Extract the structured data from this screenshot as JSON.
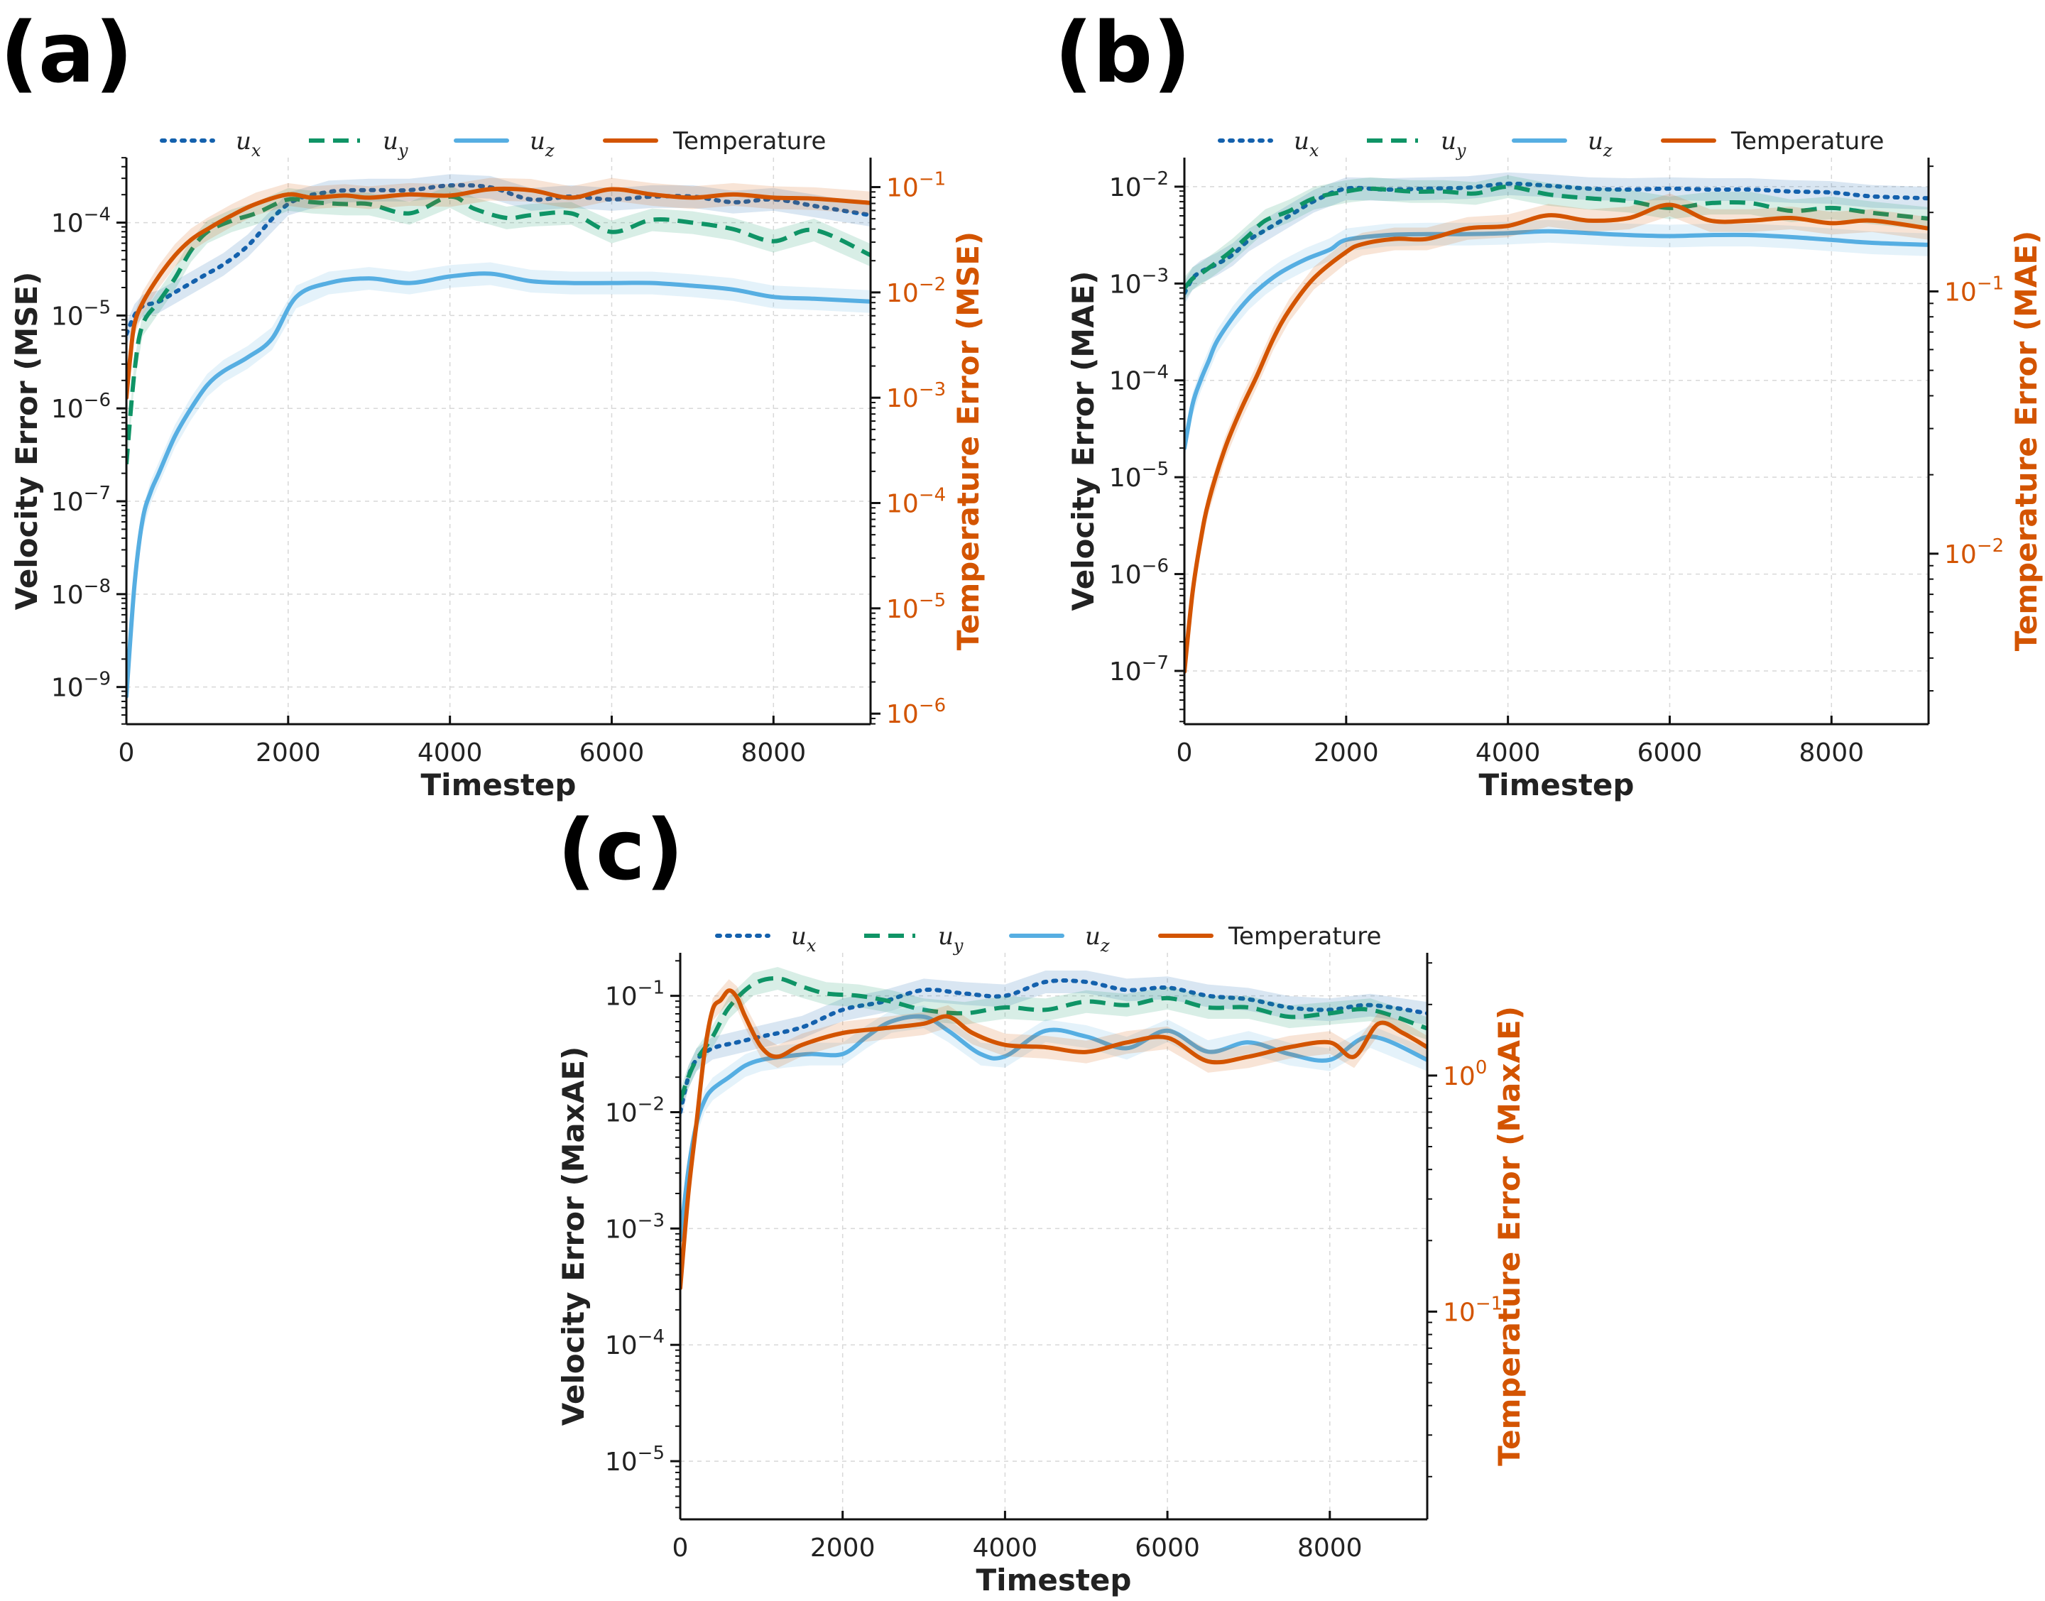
{
  "colors": {
    "ux": "#1461ad",
    "uy": "#0f9466",
    "uz": "#56aee2",
    "temperature": "#d35400",
    "axis": "#111111",
    "grid": "#d8d8d8"
  },
  "legend": [
    {
      "key": "ux",
      "base": "u",
      "sub": "x",
      "style": "dotted",
      "color": "#1461ad"
    },
    {
      "key": "uy",
      "base": "u",
      "sub": "y",
      "style": "dashed",
      "color": "#0f9466"
    },
    {
      "key": "uz",
      "base": "u",
      "sub": "z",
      "style": "solid",
      "color": "#56aee2"
    },
    {
      "key": "temperature",
      "label": "Temperature",
      "style": "solid",
      "color": "#d35400"
    }
  ],
  "chart_data": [
    {
      "type": "line",
      "panel_label": "(a)",
      "xlabel": "Timestep",
      "ylabel": "Velocity Error (MSE)",
      "y2label": "Temperature Error (MSE)",
      "xlim": [
        0,
        9200
      ],
      "xticks": [
        0,
        2000,
        4000,
        6000,
        8000
      ],
      "yscale": "log",
      "ylim_exp": [
        -9.4,
        -3.3
      ],
      "yticks_exp": [
        -9,
        -8,
        -7,
        -6,
        -5,
        -4
      ],
      "y2scale": "log",
      "y2lim_exp": [
        -6.1,
        -0.72
      ],
      "y2ticks_exp": [
        -6,
        -5,
        -4,
        -3,
        -2,
        -1
      ],
      "grid": true,
      "legend_position": "top",
      "series": [
        {
          "key": "ux",
          "axis": "left",
          "x": [
            0,
            100,
            200,
            400,
            600,
            800,
            1000,
            1200,
            1500,
            2000,
            2500,
            3000,
            3500,
            4000,
            4500,
            5000,
            5500,
            6000,
            6500,
            7000,
            7500,
            8000,
            8500,
            9200
          ],
          "y_exp": [
            -5.2,
            -5.0,
            -4.9,
            -4.85,
            -4.75,
            -4.65,
            -4.55,
            -4.45,
            -4.25,
            -3.8,
            -3.67,
            -3.65,
            -3.65,
            -3.6,
            -3.62,
            -3.75,
            -3.72,
            -3.75,
            -3.72,
            -3.72,
            -3.78,
            -3.75,
            -3.82,
            -3.92
          ]
        },
        {
          "key": "uy",
          "axis": "left",
          "x": [
            0,
            100,
            200,
            400,
            600,
            800,
            1000,
            1300,
            1600,
            2000,
            2300,
            2700,
            3000,
            3500,
            4000,
            4300,
            4700,
            5000,
            5500,
            6000,
            6500,
            7000,
            7500,
            8000,
            8500,
            9200
          ],
          "y_exp": [
            -6.6,
            -5.6,
            -5.1,
            -4.85,
            -4.6,
            -4.3,
            -4.1,
            -3.98,
            -3.9,
            -3.75,
            -3.78,
            -3.8,
            -3.8,
            -3.9,
            -3.72,
            -3.85,
            -3.95,
            -3.92,
            -3.9,
            -4.1,
            -3.97,
            -4.0,
            -4.07,
            -4.2,
            -4.08,
            -4.35
          ]
        },
        {
          "key": "uz",
          "axis": "left",
          "x": [
            0,
            100,
            200,
            300,
            400,
            600,
            800,
            1000,
            1200,
            1500,
            1800,
            2100,
            2500,
            3000,
            3500,
            4000,
            4500,
            5000,
            5500,
            6000,
            6500,
            7000,
            7500,
            8000,
            8500,
            9200
          ],
          "y_exp": [
            -9.1,
            -7.9,
            -7.2,
            -6.9,
            -6.7,
            -6.3,
            -6.0,
            -5.75,
            -5.6,
            -5.45,
            -5.25,
            -4.8,
            -4.65,
            -4.6,
            -4.65,
            -4.58,
            -4.55,
            -4.63,
            -4.65,
            -4.65,
            -4.65,
            -4.68,
            -4.72,
            -4.8,
            -4.82,
            -4.85
          ]
        },
        {
          "key": "temperature",
          "axis": "right",
          "x": [
            0,
            50,
            100,
            200,
            400,
            600,
            800,
            1000,
            1300,
            1600,
            2000,
            2300,
            2700,
            3000,
            3500,
            4000,
            4500,
            5000,
            5500,
            6000,
            6500,
            7000,
            7500,
            8000,
            8500,
            9200
          ],
          "y_exp": [
            -3.0,
            -2.6,
            -2.3,
            -2.1,
            -1.85,
            -1.65,
            -1.5,
            -1.4,
            -1.27,
            -1.16,
            -1.07,
            -1.1,
            -1.08,
            -1.1,
            -1.07,
            -1.08,
            -1.02,
            -1.03,
            -1.1,
            -1.02,
            -1.07,
            -1.1,
            -1.07,
            -1.1,
            -1.11,
            -1.15
          ]
        }
      ]
    },
    {
      "type": "line",
      "panel_label": "(b)",
      "xlabel": "Timestep",
      "ylabel": "Velocity Error (MAE)",
      "y2label": "Temperature Error (MAE)",
      "xlim": [
        0,
        9200
      ],
      "xticks": [
        0,
        2000,
        4000,
        6000,
        8000
      ],
      "yscale": "log",
      "ylim_exp": [
        -7.55,
        -1.7
      ],
      "yticks_exp": [
        -7,
        -6,
        -5,
        -4,
        -3,
        -2
      ],
      "y2scale": "log",
      "y2lim_exp": [
        -2.65,
        -0.49
      ],
      "y2ticks_exp": [
        -2,
        -1
      ],
      "grid": true,
      "legend_position": "top",
      "series": [
        {
          "key": "ux",
          "axis": "left",
          "x": [
            0,
            100,
            200,
            400,
            600,
            800,
            1000,
            1300,
            1600,
            2000,
            2500,
            3000,
            3500,
            4000,
            4500,
            5000,
            5500,
            6000,
            6500,
            7000,
            7500,
            8000,
            8500,
            9200
          ],
          "y_exp": [
            -3.1,
            -2.95,
            -2.88,
            -2.8,
            -2.7,
            -2.55,
            -2.45,
            -2.3,
            -2.15,
            -2.02,
            -2.03,
            -2.02,
            -2.01,
            -1.97,
            -1.99,
            -2.02,
            -2.03,
            -2.02,
            -2.03,
            -2.03,
            -2.05,
            -2.06,
            -2.1,
            -2.12
          ]
        },
        {
          "key": "uy",
          "axis": "left",
          "x": [
            0,
            100,
            200,
            400,
            600,
            800,
            1000,
            1300,
            1600,
            2000,
            2300,
            2800,
            3200,
            3600,
            4000,
            4500,
            5000,
            5500,
            6000,
            6500,
            7000,
            7500,
            8000,
            8500,
            9200
          ],
          "y_exp": [
            -3.05,
            -2.95,
            -2.9,
            -2.78,
            -2.65,
            -2.5,
            -2.35,
            -2.25,
            -2.12,
            -2.05,
            -2.02,
            -2.05,
            -2.05,
            -2.07,
            -2.0,
            -2.08,
            -2.12,
            -2.15,
            -2.22,
            -2.17,
            -2.17,
            -2.25,
            -2.22,
            -2.27,
            -2.33
          ]
        },
        {
          "key": "uz",
          "axis": "left",
          "x": [
            0,
            100,
            200,
            300,
            400,
            600,
            800,
            1000,
            1200,
            1500,
            1800,
            2000,
            2500,
            3000,
            3500,
            4000,
            4500,
            5000,
            5500,
            6000,
            6500,
            7000,
            7500,
            8000,
            8500,
            9200
          ],
          "y_exp": [
            -4.7,
            -4.25,
            -4.0,
            -3.8,
            -3.6,
            -3.35,
            -3.15,
            -3.0,
            -2.88,
            -2.75,
            -2.65,
            -2.55,
            -2.5,
            -2.49,
            -2.49,
            -2.48,
            -2.46,
            -2.48,
            -2.5,
            -2.51,
            -2.5,
            -2.5,
            -2.52,
            -2.55,
            -2.58,
            -2.6
          ]
        },
        {
          "key": "temperature",
          "axis": "right",
          "x": [
            0,
            100,
            200,
            300,
            500,
            700,
            900,
            1100,
            1300,
            1600,
            2000,
            2200,
            2600,
            3000,
            3500,
            4000,
            4500,
            5000,
            5500,
            6000,
            6500,
            7000,
            7500,
            8000,
            8500,
            9200
          ],
          "y_exp": [
            -2.45,
            -2.15,
            -1.95,
            -1.8,
            -1.6,
            -1.45,
            -1.32,
            -1.18,
            -1.07,
            -0.95,
            -0.85,
            -0.82,
            -0.8,
            -0.8,
            -0.76,
            -0.75,
            -0.71,
            -0.73,
            -0.72,
            -0.67,
            -0.73,
            -0.73,
            -0.72,
            -0.74,
            -0.73,
            -0.76
          ]
        }
      ]
    },
    {
      "type": "line",
      "panel_label": "(c)",
      "xlabel": "Timestep",
      "ylabel": "Velocity Error (MaxAE)",
      "y2label": "Temperature Error (MaxAE)",
      "xlim": [
        0,
        9200
      ],
      "xticks": [
        0,
        2000,
        4000,
        6000,
        8000
      ],
      "yscale": "log",
      "ylim_exp": [
        -5.5,
        -0.63
      ],
      "yticks_exp": [
        -5,
        -4,
        -3,
        -2,
        -1
      ],
      "y2scale": "log",
      "y2lim_exp": [
        -1.88,
        0.52
      ],
      "y2ticks_exp": [
        -1,
        0
      ],
      "grid": true,
      "legend_position": "top",
      "series": [
        {
          "key": "ux",
          "axis": "left",
          "x": [
            0,
            100,
            200,
            400,
            700,
            1000,
            1500,
            2000,
            2500,
            3000,
            3500,
            4000,
            4500,
            5000,
            5500,
            6000,
            6500,
            7000,
            7500,
            8000,
            8500,
            9200
          ],
          "y_exp": [
            -2.0,
            -1.7,
            -1.55,
            -1.45,
            -1.4,
            -1.35,
            -1.27,
            -1.12,
            -1.05,
            -0.95,
            -0.98,
            -1.0,
            -0.88,
            -0.88,
            -0.95,
            -0.93,
            -1.0,
            -1.03,
            -1.1,
            -1.12,
            -1.08,
            -1.15
          ]
        },
        {
          "key": "uy",
          "axis": "left",
          "x": [
            0,
            100,
            200,
            400,
            600,
            900,
            1200,
            1500,
            1800,
            2200,
            2600,
            3000,
            3500,
            4000,
            4500,
            5000,
            5500,
            6000,
            6500,
            7000,
            7500,
            8000,
            8500,
            9200
          ],
          "y_exp": [
            -1.9,
            -1.7,
            -1.55,
            -1.35,
            -1.1,
            -0.9,
            -0.85,
            -0.92,
            -0.98,
            -1.0,
            -1.05,
            -1.12,
            -1.15,
            -1.1,
            -1.12,
            -1.05,
            -1.08,
            -1.02,
            -1.1,
            -1.1,
            -1.18,
            -1.15,
            -1.12,
            -1.28
          ]
        },
        {
          "key": "uz",
          "axis": "left",
          "x": [
            0,
            100,
            200,
            300,
            400,
            600,
            800,
            1000,
            1300,
            1600,
            2000,
            2300,
            2600,
            3000,
            3300,
            3700,
            4000,
            4500,
            5000,
            5500,
            6000,
            6500,
            7000,
            7500,
            8000,
            8500,
            9200
          ],
          "y_exp": [
            -3.1,
            -2.5,
            -2.1,
            -1.9,
            -1.8,
            -1.7,
            -1.6,
            -1.55,
            -1.52,
            -1.5,
            -1.5,
            -1.35,
            -1.22,
            -1.18,
            -1.3,
            -1.5,
            -1.52,
            -1.3,
            -1.35,
            -1.45,
            -1.3,
            -1.48,
            -1.4,
            -1.5,
            -1.55,
            -1.35,
            -1.55
          ]
        },
        {
          "key": "temperature",
          "axis": "right",
          "x": [
            0,
            100,
            200,
            300,
            400,
            500,
            600,
            700,
            800,
            1000,
            1200,
            1500,
            2000,
            2500,
            3000,
            3300,
            3600,
            4000,
            4500,
            5000,
            5500,
            6000,
            6500,
            7000,
            7500,
            8000,
            8300,
            8600,
            8900,
            9200
          ],
          "y_exp": [
            -0.9,
            -0.5,
            -0.2,
            0.1,
            0.28,
            0.32,
            0.36,
            0.33,
            0.25,
            0.12,
            0.08,
            0.13,
            0.18,
            0.2,
            0.22,
            0.25,
            0.18,
            0.13,
            0.12,
            0.1,
            0.14,
            0.16,
            0.06,
            0.08,
            0.12,
            0.14,
            0.08,
            0.22,
            0.18,
            0.12
          ]
        }
      ]
    }
  ]
}
